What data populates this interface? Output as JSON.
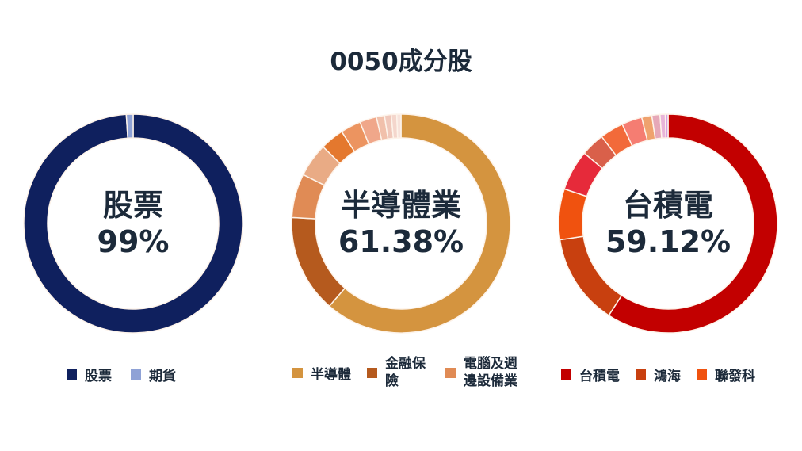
{
  "title": "0050成分股",
  "chart_data": [
    {
      "type": "pie",
      "donut": true,
      "center_label": "股票",
      "center_value": "99%",
      "legend_placement": "bottom",
      "slices": [
        {
          "name": "股票",
          "value": 99,
          "color": "#0f205e"
        },
        {
          "name": "期貨",
          "value": 1,
          "color": "#8fa2d6"
        }
      ]
    },
    {
      "type": "pie",
      "donut": true,
      "center_label": "半導體業",
      "center_value": "61.38%",
      "legend_placement": "bottom",
      "slices": [
        {
          "name": "半導體",
          "value": 61.38,
          "color": "#d4943f"
        },
        {
          "name": "金融保險",
          "value": 14.5,
          "color": "#b55a1e"
        },
        {
          "name": "電腦及週邊設備業",
          "value": 6.5,
          "color": "#e08b55"
        },
        {
          "value": 5,
          "color": "#e9ab85"
        },
        {
          "value": 3.5,
          "color": "#e4782e"
        },
        {
          "value": 3,
          "color": "#ec9460"
        },
        {
          "value": 2.5,
          "color": "#f0a78a"
        },
        {
          "value": 1.2,
          "color": "#f1c0ab"
        },
        {
          "value": 1,
          "color": "#f0c8bb"
        },
        {
          "value": 0.8,
          "color": "#f4d6cc"
        },
        {
          "value": 0.62,
          "color": "#f7e3dc"
        }
      ]
    },
    {
      "type": "pie",
      "donut": true,
      "center_label": "台積電",
      "center_value": "59.12%",
      "legend_placement": "bottom",
      "slices": [
        {
          "name": "台積電",
          "value": 59.12,
          "color": "#c20000"
        },
        {
          "name": "鴻海",
          "value": 13.5,
          "color": "#c8400f"
        },
        {
          "name": "聯發科",
          "value": 7.5,
          "color": "#f0520f"
        },
        {
          "value": 6,
          "color": "#e62a3a"
        },
        {
          "value": 3.5,
          "color": "#d9604a"
        },
        {
          "value": 3.5,
          "color": "#f26a3a"
        },
        {
          "value": 3,
          "color": "#f57d72"
        },
        {
          "value": 1.5,
          "color": "#efa26e"
        },
        {
          "value": 1.2,
          "color": "#e6a8b8"
        },
        {
          "value": 0.78,
          "color": "#e8b4d8"
        },
        {
          "value": 0.4,
          "color": "#d8a0e0"
        }
      ]
    }
  ]
}
